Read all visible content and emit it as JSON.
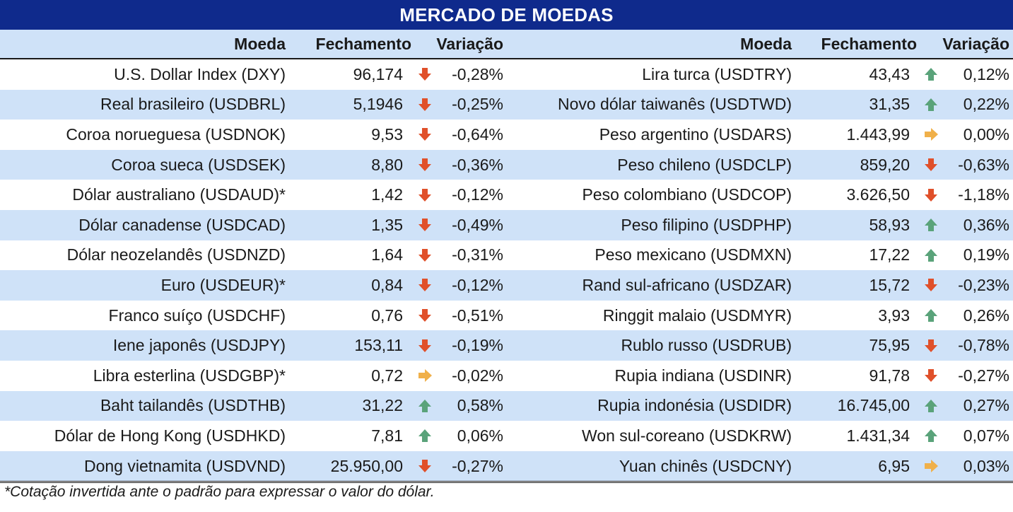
{
  "title": "MERCADO DE MOEDAS",
  "headers": {
    "moeda": "Moeda",
    "fechamento": "Fechamento",
    "variacao": "Variação"
  },
  "colors": {
    "title_bg": "#0f2a8c",
    "band": "#cfe2f8",
    "down": "#e0502a",
    "up": "#5aa37a",
    "flat": "#f0b04a"
  },
  "left": [
    {
      "moeda": "U.S. Dollar Index (DXY)",
      "fechamento": "96,174",
      "trend": "down",
      "variacao": "-0,28%"
    },
    {
      "moeda": "Real brasileiro (USDBRL)",
      "fechamento": "5,1946",
      "trend": "down",
      "variacao": "-0,25%"
    },
    {
      "moeda": "Coroa norueguesa (USDNOK)",
      "fechamento": "9,53",
      "trend": "down",
      "variacao": "-0,64%"
    },
    {
      "moeda": "Coroa sueca (USDSEK)",
      "fechamento": "8,80",
      "trend": "down",
      "variacao": "-0,36%"
    },
    {
      "moeda": "Dólar australiano (USDAUD)*",
      "fechamento": "1,42",
      "trend": "down",
      "variacao": "-0,12%"
    },
    {
      "moeda": "Dólar canadense (USDCAD)",
      "fechamento": "1,35",
      "trend": "down",
      "variacao": "-0,49%"
    },
    {
      "moeda": "Dólar neozelandês (USDNZD)",
      "fechamento": "1,64",
      "trend": "down",
      "variacao": "-0,31%"
    },
    {
      "moeda": "Euro (USDEUR)*",
      "fechamento": "0,84",
      "trend": "down",
      "variacao": "-0,12%"
    },
    {
      "moeda": "Franco suíço (USDCHF)",
      "fechamento": "0,76",
      "trend": "down",
      "variacao": "-0,51%"
    },
    {
      "moeda": "Iene japonês (USDJPY)",
      "fechamento": "153,11",
      "trend": "down",
      "variacao": "-0,19%"
    },
    {
      "moeda": "Libra esterlina (USDGBP)*",
      "fechamento": "0,72",
      "trend": "flat",
      "variacao": "-0,02%"
    },
    {
      "moeda": "Baht tailandês (USDTHB)",
      "fechamento": "31,22",
      "trend": "up",
      "variacao": "0,58%"
    },
    {
      "moeda": "Dólar de Hong Kong (USDHKD)",
      "fechamento": "7,81",
      "trend": "up",
      "variacao": "0,06%"
    },
    {
      "moeda": "Dong vietnamita (USDVND)",
      "fechamento": "25.950,00",
      "trend": "down",
      "variacao": "-0,27%"
    }
  ],
  "right": [
    {
      "moeda": "Lira turca (USDTRY)",
      "fechamento": "43,43",
      "trend": "up",
      "variacao": "0,12%"
    },
    {
      "moeda": "Novo dólar taiwanês (USDTWD)",
      "fechamento": "31,35",
      "trend": "up",
      "variacao": "0,22%"
    },
    {
      "moeda": "Peso argentino (USDARS)",
      "fechamento": "1.443,99",
      "trend": "flat",
      "variacao": "0,00%"
    },
    {
      "moeda": "Peso chileno (USDCLP)",
      "fechamento": "859,20",
      "trend": "down",
      "variacao": "-0,63%"
    },
    {
      "moeda": "Peso colombiano (USDCOP)",
      "fechamento": "3.626,50",
      "trend": "down",
      "variacao": "-1,18%"
    },
    {
      "moeda": "Peso filipino (USDPHP)",
      "fechamento": "58,93",
      "trend": "up",
      "variacao": "0,36%"
    },
    {
      "moeda": "Peso mexicano (USDMXN)",
      "fechamento": "17,22",
      "trend": "up",
      "variacao": "0,19%"
    },
    {
      "moeda": "Rand sul-africano (USDZAR)",
      "fechamento": "15,72",
      "trend": "down",
      "variacao": "-0,23%"
    },
    {
      "moeda": "Ringgit malaio (USDMYR)",
      "fechamento": "3,93",
      "trend": "up",
      "variacao": "0,26%"
    },
    {
      "moeda": "Rublo russo (USDRUB)",
      "fechamento": "75,95",
      "trend": "down",
      "variacao": "-0,78%"
    },
    {
      "moeda": "Rupia indiana (USDINR)",
      "fechamento": "91,78",
      "trend": "down",
      "variacao": "-0,27%"
    },
    {
      "moeda": "Rupia indonésia (USDIDR)",
      "fechamento": "16.745,00",
      "trend": "up",
      "variacao": "0,27%"
    },
    {
      "moeda": "Won sul-coreano (USDKRW)",
      "fechamento": "1.431,34",
      "trend": "up",
      "variacao": "0,07%"
    },
    {
      "moeda": "Yuan chinês (USDCNY)",
      "fechamento": "6,95",
      "trend": "flat",
      "variacao": "0,03%"
    }
  ],
  "footnote": "*Cotação invertida ante o padrão para expressar o valor do dólar."
}
